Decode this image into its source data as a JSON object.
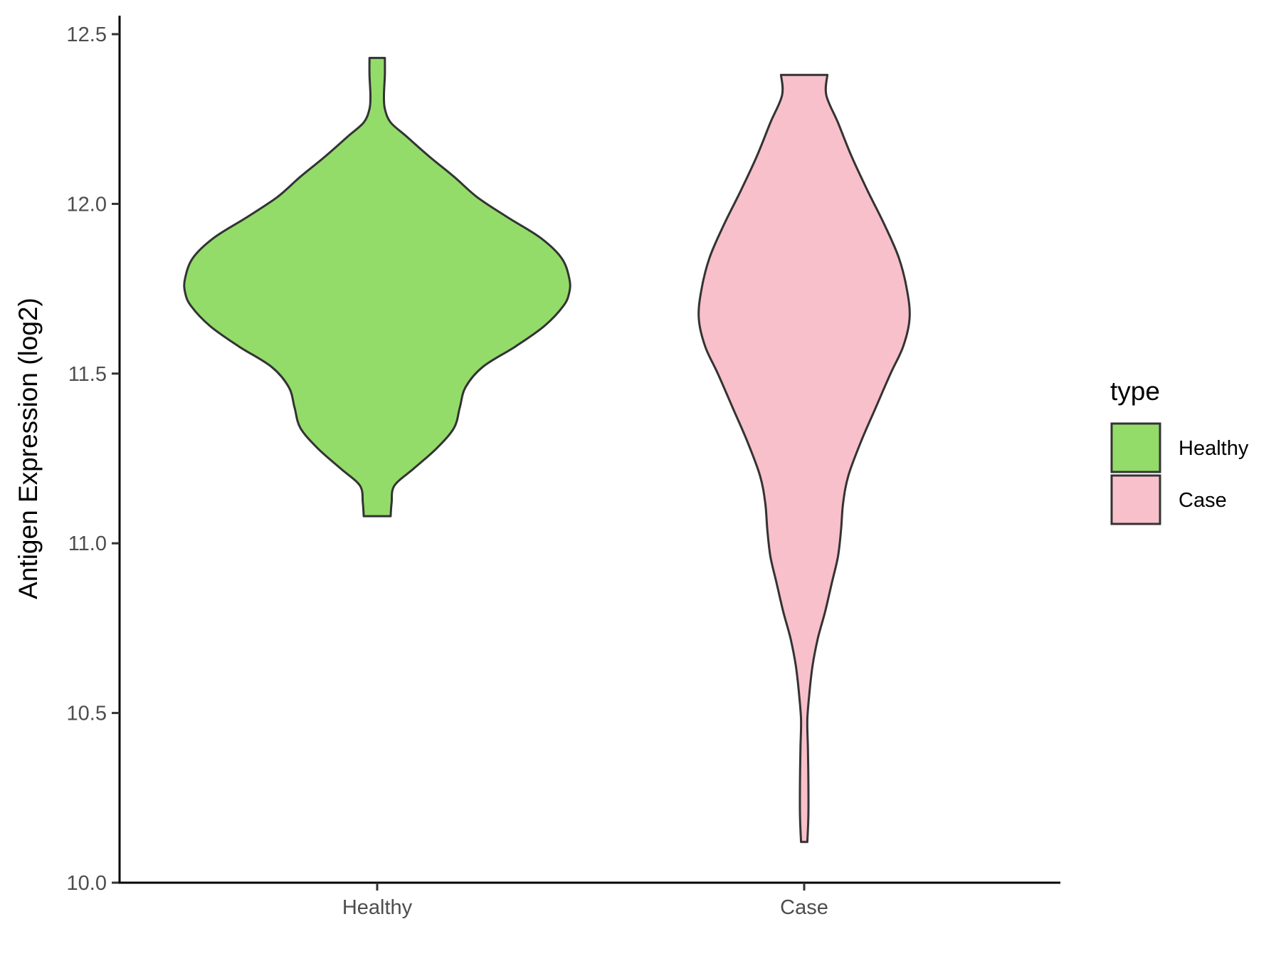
{
  "chart_data": {
    "type": "violin",
    "title": "",
    "xlabel": "",
    "ylabel": "Antigen Expression (log2)",
    "ylim": [
      10.0,
      12.5
    ],
    "y_ticks": [
      "10.0",
      "10.5",
      "11.0",
      "11.5",
      "12.0",
      "12.5"
    ],
    "categories": [
      "Healthy",
      "Case"
    ],
    "grid": false,
    "legend": {
      "title": "type",
      "position": "right",
      "entries": [
        {
          "label": "Healthy",
          "color": "#93dc6a"
        },
        {
          "label": "Case",
          "color": "#f8c0cb"
        }
      ]
    },
    "series": [
      {
        "name": "Healthy",
        "color": "#93dc6a",
        "min": 11.08,
        "max": 12.43,
        "density": [
          [
            11.08,
            0.07
          ],
          [
            11.12,
            0.075
          ],
          [
            11.17,
            0.09
          ],
          [
            11.22,
            0.19
          ],
          [
            11.28,
            0.31
          ],
          [
            11.34,
            0.4
          ],
          [
            11.4,
            0.43
          ],
          [
            11.46,
            0.46
          ],
          [
            11.52,
            0.55
          ],
          [
            11.58,
            0.72
          ],
          [
            11.64,
            0.87
          ],
          [
            11.7,
            0.97
          ],
          [
            11.74,
            1.0
          ],
          [
            11.78,
            1.0
          ],
          [
            11.84,
            0.96
          ],
          [
            11.9,
            0.85
          ],
          [
            11.96,
            0.68
          ],
          [
            12.02,
            0.52
          ],
          [
            12.08,
            0.4
          ],
          [
            12.14,
            0.27
          ],
          [
            12.2,
            0.15
          ],
          [
            12.24,
            0.07
          ],
          [
            12.28,
            0.04
          ],
          [
            12.32,
            0.035
          ],
          [
            12.38,
            0.04
          ],
          [
            12.43,
            0.04
          ]
        ]
      },
      {
        "name": "Case",
        "color": "#f8c0cb",
        "min": 10.12,
        "max": 12.38,
        "density": [
          [
            10.12,
            0.03
          ],
          [
            10.2,
            0.04
          ],
          [
            10.3,
            0.04
          ],
          [
            10.4,
            0.035
          ],
          [
            10.48,
            0.03
          ],
          [
            10.56,
            0.05
          ],
          [
            10.64,
            0.08
          ],
          [
            10.72,
            0.13
          ],
          [
            10.8,
            0.2
          ],
          [
            10.88,
            0.26
          ],
          [
            10.96,
            0.32
          ],
          [
            11.04,
            0.35
          ],
          [
            11.12,
            0.37
          ],
          [
            11.2,
            0.42
          ],
          [
            11.3,
            0.54
          ],
          [
            11.4,
            0.68
          ],
          [
            11.5,
            0.82
          ],
          [
            11.58,
            0.94
          ],
          [
            11.66,
            1.0
          ],
          [
            11.74,
            0.98
          ],
          [
            11.84,
            0.9
          ],
          [
            11.94,
            0.76
          ],
          [
            12.04,
            0.6
          ],
          [
            12.14,
            0.45
          ],
          [
            12.24,
            0.32
          ],
          [
            12.32,
            0.21
          ],
          [
            12.38,
            0.22
          ]
        ]
      }
    ]
  }
}
